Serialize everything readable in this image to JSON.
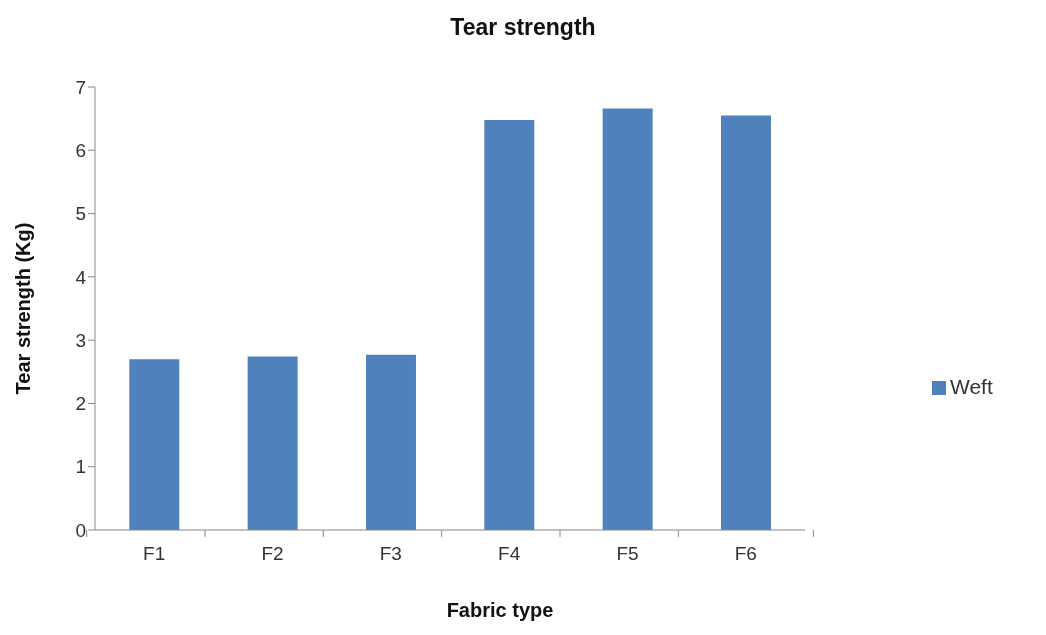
{
  "chart_data": {
    "type": "bar",
    "title": "Tear strength",
    "xlabel": "Fabric type",
    "ylabel": "Tear strength (Kg)",
    "categories": [
      "F1",
      "F2",
      "F3",
      "F4",
      "F5",
      "F6"
    ],
    "series": [
      {
        "name": "Weft",
        "color": "#4f81bd",
        "values": [
          2.7,
          2.74,
          2.77,
          6.48,
          6.66,
          6.55
        ]
      }
    ],
    "ylim": [
      0,
      7
    ],
    "yticks": [
      0,
      1,
      2,
      3,
      4,
      5,
      6,
      7
    ],
    "legend": "right"
  }
}
